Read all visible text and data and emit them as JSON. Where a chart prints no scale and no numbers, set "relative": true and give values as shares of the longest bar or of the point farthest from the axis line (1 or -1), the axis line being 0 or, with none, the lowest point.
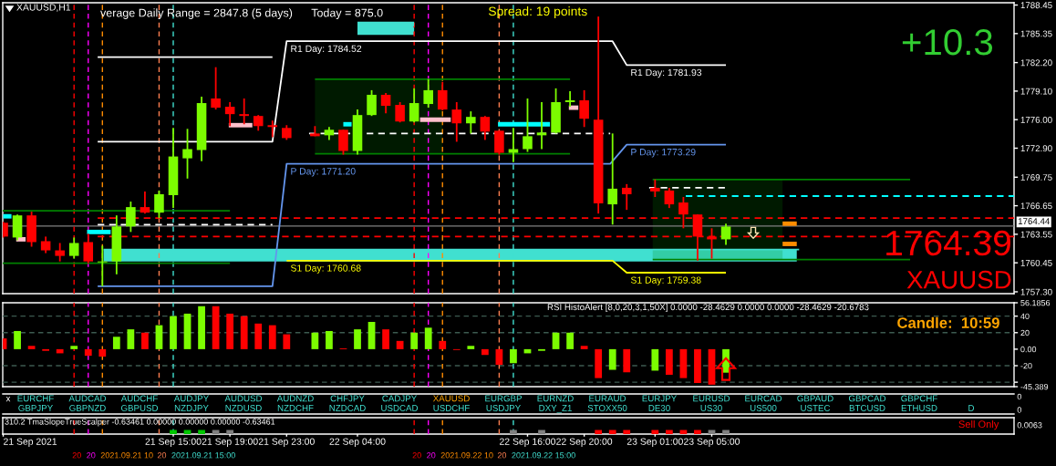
{
  "chart_data": [
    {
      "type": "candlestick",
      "title": "XAUUSD,H1",
      "x": [
        "2021-09-21T03:00",
        "2021-09-21T04:00",
        "2021-09-21T05:00",
        "2021-09-21T06:00",
        "2021-09-21T07:00",
        "2021-09-21T08:00",
        "2021-09-21T09:00",
        "2021-09-21T10:00",
        "2021-09-21T11:00",
        "2021-09-21T12:00",
        "2021-09-21T13:00",
        "2021-09-21T14:00",
        "2021-09-21T15:00",
        "2021-09-21T16:00",
        "2021-09-21T17:00",
        "2021-09-21T18:00",
        "2021-09-21T19:00",
        "2021-09-21T20:00",
        "2021-09-21T21:00",
        "2021-09-21T22:00",
        "2021-09-21T23:00",
        "2021-09-22T01:00",
        "2021-09-22T02:00",
        "2021-09-22T03:00",
        "2021-09-22T04:00",
        "2021-09-22T05:00",
        "2021-09-22T06:00",
        "2021-09-22T07:00",
        "2021-09-22T08:00",
        "2021-09-22T09:00",
        "2021-09-22T10:00",
        "2021-09-22T11:00",
        "2021-09-22T12:00",
        "2021-09-22T13:00",
        "2021-09-22T14:00",
        "2021-09-22T15:00",
        "2021-09-22T16:00",
        "2021-09-22T17:00",
        "2021-09-22T18:00",
        "2021-09-22T19:00",
        "2021-09-22T20:00",
        "2021-09-22T21:00",
        "2021-09-22T22:00",
        "2021-09-22T23:00",
        "2021-09-23T01:00",
        "2021-09-23T02:00",
        "2021-09-23T03:00",
        "2021-09-23T04:00",
        "2021-09-23T05:00",
        "2021-09-23T06:00"
      ],
      "ohlc": [
        [
          1764.8,
          1764.9,
          1763.2,
          1763.3
        ],
        [
          1763.2,
          1765.7,
          1762.9,
          1765.6
        ],
        [
          1765.6,
          1766.0,
          1762.2,
          1762.7
        ],
        [
          1762.8,
          1763.3,
          1761.5,
          1761.8
        ],
        [
          1761.8,
          1762.6,
          1760.6,
          1761.2
        ],
        [
          1761.2,
          1763.2,
          1760.9,
          1762.6
        ],
        [
          1762.7,
          1763.6,
          1760.4,
          1760.6
        ],
        [
          1760.5,
          1762.3,
          1757.9,
          1760.6
        ],
        [
          1760.6,
          1765.6,
          1759.2,
          1764.4
        ],
        [
          1764.4,
          1767.1,
          1763.8,
          1766.5
        ],
        [
          1766.5,
          1768.2,
          1765.8,
          1765.9
        ],
        [
          1765.9,
          1768.3,
          1765.3,
          1767.9
        ],
        [
          1767.8,
          1775.1,
          1766.4,
          1772.0
        ],
        [
          1771.8,
          1775.0,
          1769.6,
          1772.8
        ],
        [
          1772.7,
          1778.5,
          1771.5,
          1777.8
        ],
        [
          1778.3,
          1781.7,
          1777.1,
          1777.3
        ],
        [
          1777.4,
          1777.9,
          1775.3,
          1776.6
        ],
        [
          1776.6,
          1778.3,
          1775.5,
          1776.4
        ],
        [
          1776.4,
          1776.5,
          1774.8,
          1775.3
        ],
        [
          1775.4,
          1775.9,
          1774.1,
          1775.2
        ],
        [
          1775.1,
          1775.4,
          1773.8,
          1774.0
        ],
        [
          1774.5,
          1775.3,
          1774.2,
          1774.2
        ],
        [
          1774.3,
          1775.2,
          1773.8,
          1774.9
        ],
        [
          1774.9,
          1774.9,
          1772.2,
          1772.6
        ],
        [
          1772.6,
          1777.1,
          1772.2,
          1776.5
        ],
        [
          1776.5,
          1779.2,
          1776.4,
          1778.7
        ],
        [
          1778.7,
          1778.9,
          1776.7,
          1777.5
        ],
        [
          1777.6,
          1777.9,
          1775.7,
          1775.8
        ],
        [
          1775.8,
          1779.4,
          1775.7,
          1777.8
        ],
        [
          1777.7,
          1780.4,
          1777.3,
          1779.2
        ],
        [
          1779.2,
          1780.1,
          1777.0,
          1777.1
        ],
        [
          1777.1,
          1777.9,
          1773.6,
          1775.6
        ],
        [
          1775.6,
          1776.9,
          1774.5,
          1776.3
        ],
        [
          1776.3,
          1776.4,
          1773.8,
          1774.7
        ],
        [
          1774.8,
          1774.8,
          1772.2,
          1772.4
        ],
        [
          1772.4,
          1775.1,
          1771.4,
          1772.8
        ],
        [
          1772.8,
          1778.3,
          1772.5,
          1774.2
        ],
        [
          1774.3,
          1777.9,
          1772.8,
          1774.6
        ],
        [
          1774.6,
          1779.4,
          1774.5,
          1777.9
        ],
        [
          1777.9,
          1779.1,
          1777.4,
          1778.1
        ],
        [
          1778.1,
          1779.2,
          1775.2,
          1776.1
        ],
        [
          1776.0,
          1787.2,
          1765.8,
          1766.9
        ],
        [
          1766.8,
          1774.5,
          1764.6,
          1768.5
        ],
        [
          1768.6,
          1769.0,
          1766.2,
          1767.9
        ],
        [
          1768.6,
          1769.5,
          1767.6,
          1768.2
        ],
        [
          1768.3,
          1768.6,
          1766.4,
          1766.8
        ],
        [
          1767.0,
          1767.6,
          1764.2,
          1765.7
        ],
        [
          1765.7,
          1765.7,
          1760.7,
          1763.3
        ],
        [
          1763.3,
          1764.2,
          1760.9,
          1763.0
        ],
        [
          1763.0,
          1764.7,
          1762.4,
          1764.39
        ]
      ],
      "colors": [
        "#ff0000",
        "#7cfc00",
        "#ff0000",
        "#ff0000",
        "#ff0000",
        "#7cfc00",
        "#ff0000",
        "#7cfc00",
        "#7cfc00",
        "#7cfc00",
        "#ff0000",
        "#7cfc00",
        "#7cfc00",
        "#7cfc00",
        "#7cfc00",
        "#ff0000",
        "#ff0000",
        "#ff0000",
        "#ff0000",
        "#ff0000",
        "#ff0000",
        "#ff0000",
        "#7cfc00",
        "#ff0000",
        "#7cfc00",
        "#7cfc00",
        "#ff0000",
        "#ff0000",
        "#7cfc00",
        "#7cfc00",
        "#ff0000",
        "#ff0000",
        "#7cfc00",
        "#ff0000",
        "#ff0000",
        "#7cfc00",
        "#7cfc00",
        "#7cfc00",
        "#7cfc00",
        "#7cfc00",
        "#ff0000",
        "#ff0000",
        "#7cfc00",
        "#ff0000",
        "#ff0000",
        "#ff0000",
        "#ff0000",
        "#ff0000",
        "#ff0000",
        "#7cfc00"
      ],
      "series": [
        {
          "type": "line",
          "color": "#40e0d0",
          "x": [
            "2021-09-21T10:05",
            "2021-09-23T11:00",
            "2021-09-23T11:10"
          ],
          "values": [
            1761.9,
            1761.9,
            1761.9
          ],
          "lower": [
            1760.6,
            1760.6,
            null
          ],
          "upper": [
            1761.9,
            1761.9,
            null
          ]
        },
        {
          "type": "line",
          "color": "#40e0d0",
          "x": [
            "2021-09-22T04:00",
            "2021-09-22T08:00"
          ],
          "values": [
            1786.4,
            1786.4
          ],
          "lower": [
            1785.2,
            1785.2
          ],
          "upper": [
            1786.4,
            1786.4
          ]
        },
        {
          "type": "line",
          "color": "#008000",
          "x": [
            "2021-09-22T01:00",
            "2021-09-22T10:00",
            "2021-09-22T19:00"
          ],
          "values": [
            1780.4,
            1780.4,
            1780.4
          ],
          "lower": [
            1772.3,
            1772.3,
            null
          ],
          "upper": [
            1780.4,
            1780.4,
            null
          ]
        },
        {
          "type": "line",
          "color": "#008000",
          "x": [
            "2021-09-22T01:00",
            "2021-09-22T19:00"
          ],
          "values": [
            1772.3,
            1772.3
          ]
        },
        {
          "type": "line",
          "color": "#008000",
          "x": [
            "2021-09-23T00:50",
            "2021-09-23T10:00",
            "2021-09-23T19:00"
          ],
          "values": [
            1769.5,
            1769.5,
            1769.5
          ],
          "lower": [
            1760.8,
            1760.8,
            null
          ],
          "upper": [
            1769.5,
            1769.5,
            null
          ]
        },
        {
          "type": "line",
          "color": "#008000",
          "x": [
            "2021-09-23T00:50",
            "2021-09-23T19:00"
          ],
          "values": [
            1760.8,
            1760.8
          ]
        },
        {
          "type": "line",
          "color": "#008000",
          "x": [
            "2021-09-21T02:58",
            "2021-09-21T19:00"
          ],
          "values": [
            1766.1,
            1766.1
          ]
        },
        {
          "type": "line",
          "color": "#008000",
          "x": [
            "2021-09-21T02:58",
            "2021-09-21T19:00"
          ],
          "values": [
            1760.4,
            1760.4
          ]
        },
        {
          "type": "line",
          "color": "#ffffff",
          "x": [
            "2021-09-21T09:40",
            "2021-09-21T22:00",
            "2021-09-21T23:00",
            "2021-09-22T22:00",
            "2021-09-22T23:00",
            "2021-09-23T06:00"
          ],
          "values": [
            1773.6,
            1773.6,
            1784.52,
            1784.52,
            1781.93,
            1781.93
          ],
          "value_labels": [
            null,
            null,
            "R1 Day: 1784.52",
            null,
            "R1 Day: 1781.93",
            null
          ]
        },
        {
          "type": "line",
          "color": "#ffffff",
          "x": [
            "2021-09-21T09:40",
            "2021-09-21T22:00"
          ],
          "values": [
            1782.8,
            1782.8
          ]
        },
        {
          "type": "line",
          "color": "#6495ed",
          "x": [
            "2021-09-21T09:40",
            "2021-09-21T22:00",
            "2021-09-21T23:00",
            "2021-09-22T21:50",
            "2021-09-22T23:00",
            "2021-09-23T06:00"
          ],
          "values": [
            1757.9,
            1757.9,
            1771.2,
            1771.2,
            1773.29,
            1773.29
          ],
          "value_labels": [
            null,
            null,
            "P Day: 1771.20",
            null,
            "P Day: 1773.29",
            null
          ]
        },
        {
          "type": "line",
          "color": "#ffff00",
          "x": [
            "2021-09-21T23:00",
            "2021-09-22T22:00",
            "2021-09-22T23:00",
            "2021-09-23T06:00"
          ],
          "values": [
            1760.68,
            1760.68,
            1759.38,
            1759.38
          ],
          "value_labels": [
            "S1 Day: 1760.68",
            null,
            "S1 Day: 1759.38",
            null
          ]
        },
        {
          "type": "line",
          "color": "#ffffff",
          "line_style": "dashed",
          "x": [
            "2021-09-21T09:40",
            "2021-09-21T22:00"
          ],
          "values": [
            1764.6,
            1764.6
          ]
        },
        {
          "type": "line",
          "color": "#ffffff",
          "line_style": "dashed",
          "x": [
            "2021-09-22T00:35",
            "2021-09-22T21:50"
          ],
          "values": [
            1774.5,
            1774.5
          ]
        },
        {
          "type": "line",
          "color": "#ffffff",
          "line_style": "dashed",
          "x": [
            "2021-09-23T00:35",
            "2021-09-23T06:00"
          ],
          "values": [
            1768.6,
            1768.6
          ]
        },
        {
          "type": "line",
          "color": "#00ffff",
          "line_style": "dashed",
          "x": [
            "2021-09-23T03:10",
            "2021-09-24T02:20"
          ],
          "values": [
            1767.7,
            1767.7
          ]
        },
        {
          "type": "line",
          "color": "#ff0000",
          "line_style": "dashed",
          "x": [
            "2021-09-21T09:40",
            "2021-09-24T02:20"
          ],
          "values": [
            1765.3,
            1765.3
          ]
        },
        {
          "type": "line",
          "color": "#ff0000",
          "line_style": "dashed",
          "x": [
            "2021-09-21T09:40",
            "2021-09-24T02:20"
          ],
          "values": [
            1763.3,
            1763.3
          ]
        },
        {
          "type": "line",
          "color": "#00ffff",
          "x": [
            "2021-09-21T03:00",
            "2021-09-21T03:35"
          ],
          "values": [
            1765.5,
            1765.5
          ]
        },
        {
          "type": "line",
          "color": "#00ffff",
          "x": [
            "2021-09-21T08:55",
            "2021-09-21T10:35"
          ],
          "values": [
            1763.8,
            1763.8
          ]
        },
        {
          "type": "line",
          "color": "#00ffff",
          "x": [
            "2021-09-22T03:00",
            "2021-09-22T03:35"
          ],
          "values": [
            1775.5,
            1775.5
          ]
        },
        {
          "type": "line",
          "color": "#00ffff",
          "x": [
            "2021-09-22T13:55",
            "2021-09-22T17:35"
          ],
          "values": [
            1775.5,
            1775.5
          ]
        },
        {
          "type": "line",
          "color": "#ffc0cb",
          "x": [
            "2021-09-21T03:55",
            "2021-09-21T04:35"
          ],
          "values": [
            1763.0,
            1763.0
          ]
        },
        {
          "type": "line",
          "color": "#ffc0cb",
          "x": [
            "2021-09-21T18:55",
            "2021-09-21T20:35"
          ],
          "values": [
            1775.4,
            1775.4
          ]
        },
        {
          "type": "line",
          "color": "#ffc0cb",
          "x": [
            "2021-09-22T08:25",
            "2021-09-22T10:35"
          ],
          "values": [
            1776.0,
            1776.0
          ]
        },
        {
          "type": "line",
          "color": "#ffc0cb",
          "x": [
            "2021-09-22T18:55",
            "2021-09-22T19:35"
          ],
          "values": [
            1777.3,
            1777.3
          ]
        },
        {
          "type": "line",
          "color": "#ff8c00",
          "x": [
            "2021-09-23T10:00",
            "2021-09-23T11:00"
          ],
          "values": [
            1764.7,
            1764.7
          ]
        },
        {
          "type": "line",
          "color": "#ff8c00",
          "x": [
            "2021-09-23T10:00",
            "2021-09-23T11:00"
          ],
          "values": [
            1762.5,
            1762.5
          ]
        }
      ],
      "ref_lines": [
        {
          "axis": "y",
          "value": 1764.44,
          "label": "1764.44",
          "color": "#808080"
        },
        {
          "axis": "x",
          "value": "2021-09-21T08:00",
          "color": "#ff0000",
          "line_style": "dashed"
        },
        {
          "axis": "x",
          "value": "2021-09-21T09:00",
          "color": "#ff00ff",
          "line_style": "dashed"
        },
        {
          "axis": "x",
          "value": "2021-09-21T10:00",
          "color": "#ff8c00",
          "line_style": "dashed"
        },
        {
          "axis": "x",
          "value": "2021-09-21T14:00",
          "color": "#ff7f50",
          "line_style": "dashed"
        },
        {
          "axis": "x",
          "value": "2021-09-21T15:00",
          "color": "#40e0d0",
          "line_style": "dashed"
        },
        {
          "axis": "x",
          "value": "2021-09-22T08:00",
          "color": "#ff0000",
          "line_style": "dashed"
        },
        {
          "axis": "x",
          "value": "2021-09-22T09:00",
          "color": "#ff00ff",
          "line_style": "dashed"
        },
        {
          "axis": "x",
          "value": "2021-09-22T10:00",
          "color": "#ff8c00",
          "line_style": "dashed"
        },
        {
          "axis": "x",
          "value": "2021-09-22T14:00",
          "color": "#ff7f50",
          "line_style": "dashed"
        },
        {
          "axis": "x",
          "value": "2021-09-22T15:00",
          "color": "#40e0d0",
          "line_style": "dashed"
        }
      ],
      "annotations": [
        "verage Daily Range = 2847.8 (5 days)",
        "Today = 875.0",
        "Spread: 19 points",
        "+10.3",
        "1764.39",
        "XAUUSD"
      ],
      "xlim": [
        "2021-09-21T02:58",
        "2021-09-24T02:20"
      ],
      "ylim": [
        1757.1,
        1788.7
      ],
      "yticks": [
        {
          "value": 1788.45,
          "label": "1788.45"
        },
        {
          "value": 1785.35,
          "label": "1785.35"
        },
        {
          "value": 1782.2,
          "label": "1782.20"
        },
        {
          "value": 1779.1,
          "label": "1779.10"
        },
        {
          "value": 1776,
          "label": "1776.00"
        },
        {
          "value": 1772.9,
          "label": "1772.90"
        },
        {
          "value": 1769.75,
          "label": "1769.75"
        },
        {
          "value": 1766.65,
          "label": "1766.65"
        },
        {
          "value": 1763.55,
          "label": "1763.55"
        },
        {
          "value": 1760.45,
          "label": "1760.45"
        },
        {
          "value": 1757.3,
          "label": "1757.30"
        }
      ],
      "tick_labels": "y"
    },
    {
      "type": "bar",
      "title": "RSI HistoAlert [8,0,20,3,1,50X] 0.0000 -28.4629 0.0000 0.0000 -28.4629 -20.6783",
      "x": [
        "2021-09-21T03:00",
        "2021-09-21T04:00",
        "2021-09-21T05:00",
        "2021-09-21T06:00",
        "2021-09-21T07:00",
        "2021-09-21T08:00",
        "2021-09-21T09:00",
        "2021-09-21T10:00",
        "2021-09-21T11:00",
        "2021-09-21T12:00",
        "2021-09-21T13:00",
        "2021-09-21T14:00",
        "2021-09-21T15:00",
        "2021-09-21T16:00",
        "2021-09-21T17:00",
        "2021-09-21T18:00",
        "2021-09-21T19:00",
        "2021-09-21T20:00",
        "2021-09-21T21:00",
        "2021-09-21T22:00",
        "2021-09-21T23:00",
        "2021-09-22T01:00",
        "2021-09-22T02:00",
        "2021-09-22T03:00",
        "2021-09-22T04:00",
        "2021-09-22T05:00",
        "2021-09-22T06:00",
        "2021-09-22T07:00",
        "2021-09-22T08:00",
        "2021-09-22T09:00",
        "2021-09-22T10:00",
        "2021-09-22T11:00",
        "2021-09-22T12:00",
        "2021-09-22T13:00",
        "2021-09-22T14:00",
        "2021-09-22T15:00",
        "2021-09-22T16:00",
        "2021-09-22T17:00",
        "2021-09-22T18:00",
        "2021-09-22T19:00",
        "2021-09-22T20:00",
        "2021-09-22T21:00",
        "2021-09-22T22:00",
        "2021-09-22T23:00",
        "2021-09-23T01:00",
        "2021-09-23T02:00",
        "2021-09-23T03:00",
        "2021-09-23T04:00",
        "2021-09-23T05:00",
        "2021-09-23T06:00"
      ],
      "values": [
        13,
        22,
        4,
        -2,
        -5,
        4,
        -8,
        -9,
        15,
        24,
        20,
        29,
        40,
        43,
        52,
        52,
        43,
        40,
        31,
        29,
        18,
        20,
        22,
        1,
        24,
        33,
        24,
        10,
        20,
        26,
        10,
        -1,
        4,
        -7,
        -19,
        -17,
        -5,
        -2,
        20,
        20,
        4,
        -35,
        -25,
        -28,
        -26,
        -31,
        -35,
        -41,
        -43,
        -28.4629
      ],
      "colors": [
        "#ff0000",
        "#7cfc00",
        "#ff0000",
        "#ff0000",
        "#ff0000",
        "#7cfc00",
        "#ff0000",
        "#ff0000",
        "#7cfc00",
        "#7cfc00",
        "#ff0000",
        "#7cfc00",
        "#7cfc00",
        "#7cfc00",
        "#7cfc00",
        "#ff0000",
        "#ff0000",
        "#ff0000",
        "#ff0000",
        "#ff0000",
        "#ff0000",
        "#7cfc00",
        "#7cfc00",
        "#ff0000",
        "#7cfc00",
        "#7cfc00",
        "#ff0000",
        "#ff0000",
        "#7cfc00",
        "#7cfc00",
        "#ff0000",
        "#ff0000",
        "#7cfc00",
        "#ff0000",
        "#ff0000",
        "#7cfc00",
        "#7cfc00",
        "#7cfc00",
        "#7cfc00",
        "#7cfc00",
        "#ff0000",
        "#ff0000",
        "#7cfc00",
        "#ff0000",
        "#7cfc00",
        "#ff0000",
        "#ff0000",
        "#ff0000",
        "#ff0000",
        "#7cfc00"
      ],
      "ref_lines": [
        {
          "axis": "y",
          "value": 40,
          "color": "#3c5a50",
          "line_style": "dashed"
        },
        {
          "axis": "y",
          "value": 20,
          "color": "#3c5a50",
          "line_style": "dashed"
        },
        {
          "axis": "y",
          "value": -20,
          "color": "#3c5a50",
          "line_style": "dashed"
        },
        {
          "axis": "y",
          "value": -40,
          "color": "#3c5a50",
          "line_style": "dashed"
        },
        {
          "axis": "x",
          "value": "2021-09-21T08:00",
          "color": "#ff0000",
          "line_style": "dashed"
        },
        {
          "axis": "x",
          "value": "2021-09-21T09:00",
          "color": "#ff00ff",
          "line_style": "dashed"
        },
        {
          "axis": "x",
          "value": "2021-09-21T10:00",
          "color": "#ff8c00",
          "line_style": "dashed"
        },
        {
          "axis": "x",
          "value": "2021-09-21T14:00",
          "color": "#ff7f50",
          "line_style": "dashed"
        },
        {
          "axis": "x",
          "value": "2021-09-21T15:00",
          "color": "#40e0d0",
          "line_style": "dashed"
        },
        {
          "axis": "x",
          "value": "2021-09-22T08:00",
          "color": "#ff0000",
          "line_style": "dashed"
        },
        {
          "axis": "x",
          "value": "2021-09-22T09:00",
          "color": "#ff00ff",
          "line_style": "dashed"
        },
        {
          "axis": "x",
          "value": "2021-09-22T10:00",
          "color": "#ff8c00",
          "line_style": "dashed"
        },
        {
          "axis": "x",
          "value": "2021-09-22T14:00",
          "color": "#ff7f50",
          "line_style": "dashed"
        },
        {
          "axis": "x",
          "value": "2021-09-22T15:00",
          "color": "#40e0d0",
          "line_style": "dashed"
        }
      ],
      "annotations": [
        "Candle:  10:59"
      ],
      "xlim": [
        "2021-09-21T02:58",
        "2021-09-24T02:20"
      ],
      "ylim": [
        -45.389,
        56.1856
      ],
      "yticks": [
        56.1856,
        40,
        20,
        {
          "value": 0,
          "label": "0.00"
        },
        -20,
        {
          "value": -40,
          "label": null
        },
        -45.389
      ],
      "tick_labels": "y"
    },
    {
      "type": "other",
      "categories": [
        "x",
        "EURCHF",
        "AUDCAD",
        "AUDCHF",
        "AUDJPY",
        "AUDUSD",
        "AUDNZD",
        "CHFJPY",
        "CADJPY",
        "XAUUSD",
        "EURGBP",
        "EURNZD",
        "EURAUD",
        "EURJPY",
        "EURUSD",
        "EURCAD",
        "GBPAUD",
        "GBPCAD",
        "GBPCHF",
        "GBPJPY",
        "GBPNZD",
        "GBPUSD",
        "NZDJPY",
        "NZDUSD",
        "NZDCHF",
        "NZDCAD",
        "USDCAD",
        "USDCHF",
        "USDJPY",
        "DXY_Z1",
        "STOXX50",
        "DE30",
        "US30",
        "US500",
        "USTEC",
        "BTCUSD",
        "ETHUSD",
        "D"
      ],
      "colors": [
        "#ffffff",
        "#40e0d0",
        "#40e0d0",
        "#40e0d0",
        "#40e0d0",
        "#40e0d0",
        "#40e0d0",
        "#40e0d0",
        "#40e0d0",
        "#ffa500",
        "#40e0d0",
        "#40e0d0",
        "#40e0d0",
        "#40e0d0",
        "#40e0d0",
        "#40e0d0",
        "#40e0d0",
        "#40e0d0",
        "#40e0d0",
        "#40e0d0",
        "#40e0d0",
        "#40e0d0",
        "#40e0d0",
        "#40e0d0",
        "#40e0d0",
        "#40e0d0",
        "#40e0d0",
        "#40e0d0",
        "#40e0d0",
        "#40e0d0",
        "#40e0d0",
        "#40e0d0",
        "#40e0d0",
        "#40e0d0",
        "#40e0d0",
        "#40e0d0",
        "#40e0d0",
        "#40e0d0"
      ],
      "annotations": [
        "0",
        "0"
      ]
    },
    {
      "type": "bar",
      "relative": true,
      "title": "310.2 TmaSlopeTrueScalper -0.63461 0.00000 0.00000 0.00000 -0.63461",
      "x": [
        "2021-09-21T15:00",
        "2021-09-21T16:00",
        "2021-09-21T17:00",
        "2021-09-21T18:00",
        "2021-09-21T19:00",
        "2021-09-22T15:00",
        "2021-09-22T17:00",
        "2021-09-22T21:00",
        "2021-09-22T22:00",
        "2021-09-22T23:00",
        "2021-09-23T01:00",
        "2021-09-23T02:00",
        "2021-09-23T03:00",
        "2021-09-23T04:00",
        "2021-09-23T05:00",
        "2021-09-23T06:00"
      ],
      "values": [
        1,
        1,
        1,
        1,
        1,
        1,
        1,
        1,
        1,
        1,
        1,
        1,
        1,
        1,
        1,
        1
      ],
      "colors": [
        "#00c800",
        "#00c800",
        "#00c800",
        "#808080",
        "#808080",
        "#808080",
        "#808080",
        "#ff0000",
        "#ff0000",
        "#ff0000",
        "#ff0000",
        "#ff0000",
        "#ff0000",
        "#ff0000",
        "#808080",
        "#808080"
      ],
      "ref_lines": [
        {
          "axis": "x",
          "value": "2021-09-21T08:00",
          "label": "20",
          "color": "#ff0000",
          "line_style": "dashed"
        },
        {
          "axis": "x",
          "value": "2021-09-21T09:00",
          "label": "20",
          "color": "#ff00ff",
          "line_style": "dashed"
        },
        {
          "axis": "x",
          "value": "2021-09-21T10:00",
          "label": "2021.09.21 10",
          "color": "#ff8c00",
          "line_style": "dashed"
        },
        {
          "axis": "x",
          "value": "2021-09-21T14:00",
          "label": "20",
          "color": "#ff7f50",
          "line_style": "dashed"
        },
        {
          "axis": "x",
          "value": "2021-09-21T15:00",
          "label": "2021.09.21 15:00",
          "color": "#40e0d0",
          "line_style": "dashed"
        },
        {
          "axis": "x",
          "value": "2021-09-22T08:00",
          "label": "20",
          "color": "#ff0000",
          "line_style": "dashed"
        },
        {
          "axis": "x",
          "value": "2021-09-22T09:00",
          "label": "20",
          "color": "#ff00ff",
          "line_style": "dashed"
        },
        {
          "axis": "x",
          "value": "2021-09-22T10:00",
          "label": "2021.09.22 10",
          "color": "#ff8c00",
          "line_style": "dashed"
        },
        {
          "axis": "x",
          "value": "2021-09-22T14:00",
          "label": "20",
          "color": "#ff7f50",
          "line_style": "dashed"
        },
        {
          "axis": "x",
          "value": "2021-09-22T15:00",
          "label": "2021.09.22 15:00",
          "color": "#40e0d0",
          "line_style": "dashed"
        }
      ],
      "annotations": [
        "0.0063",
        "Sell Only"
      ],
      "xlim": [
        "2021-09-21T02:58",
        "2021-09-24T02:20"
      ],
      "xticks": [
        {
          "value": "2021-09-21T03:00",
          "label": "21 Sep 2021"
        },
        {
          "value": "2021-09-21T15:00",
          "label": "21 Sep 15:00"
        },
        {
          "value": "2021-09-21T19:00",
          "label": "21 Sep 19:00"
        },
        {
          "value": "2021-09-21T23:00",
          "label": "21 Sep 23:00"
        },
        {
          "value": "2021-09-22T04:00",
          "label": "22 Sep 04:00"
        },
        {
          "value": "2021-09-22T16:00",
          "label": "22 Sep 16:00"
        },
        {
          "value": "2021-09-22T20:00",
          "label": "22 Sep 20:00"
        },
        {
          "value": "2021-09-23T01:00",
          "label": "23 Sep 01:00"
        },
        {
          "value": "2021-09-23T05:00",
          "label": "23 Sep 05:00"
        }
      ],
      "tick_labels": "x"
    }
  ]
}
